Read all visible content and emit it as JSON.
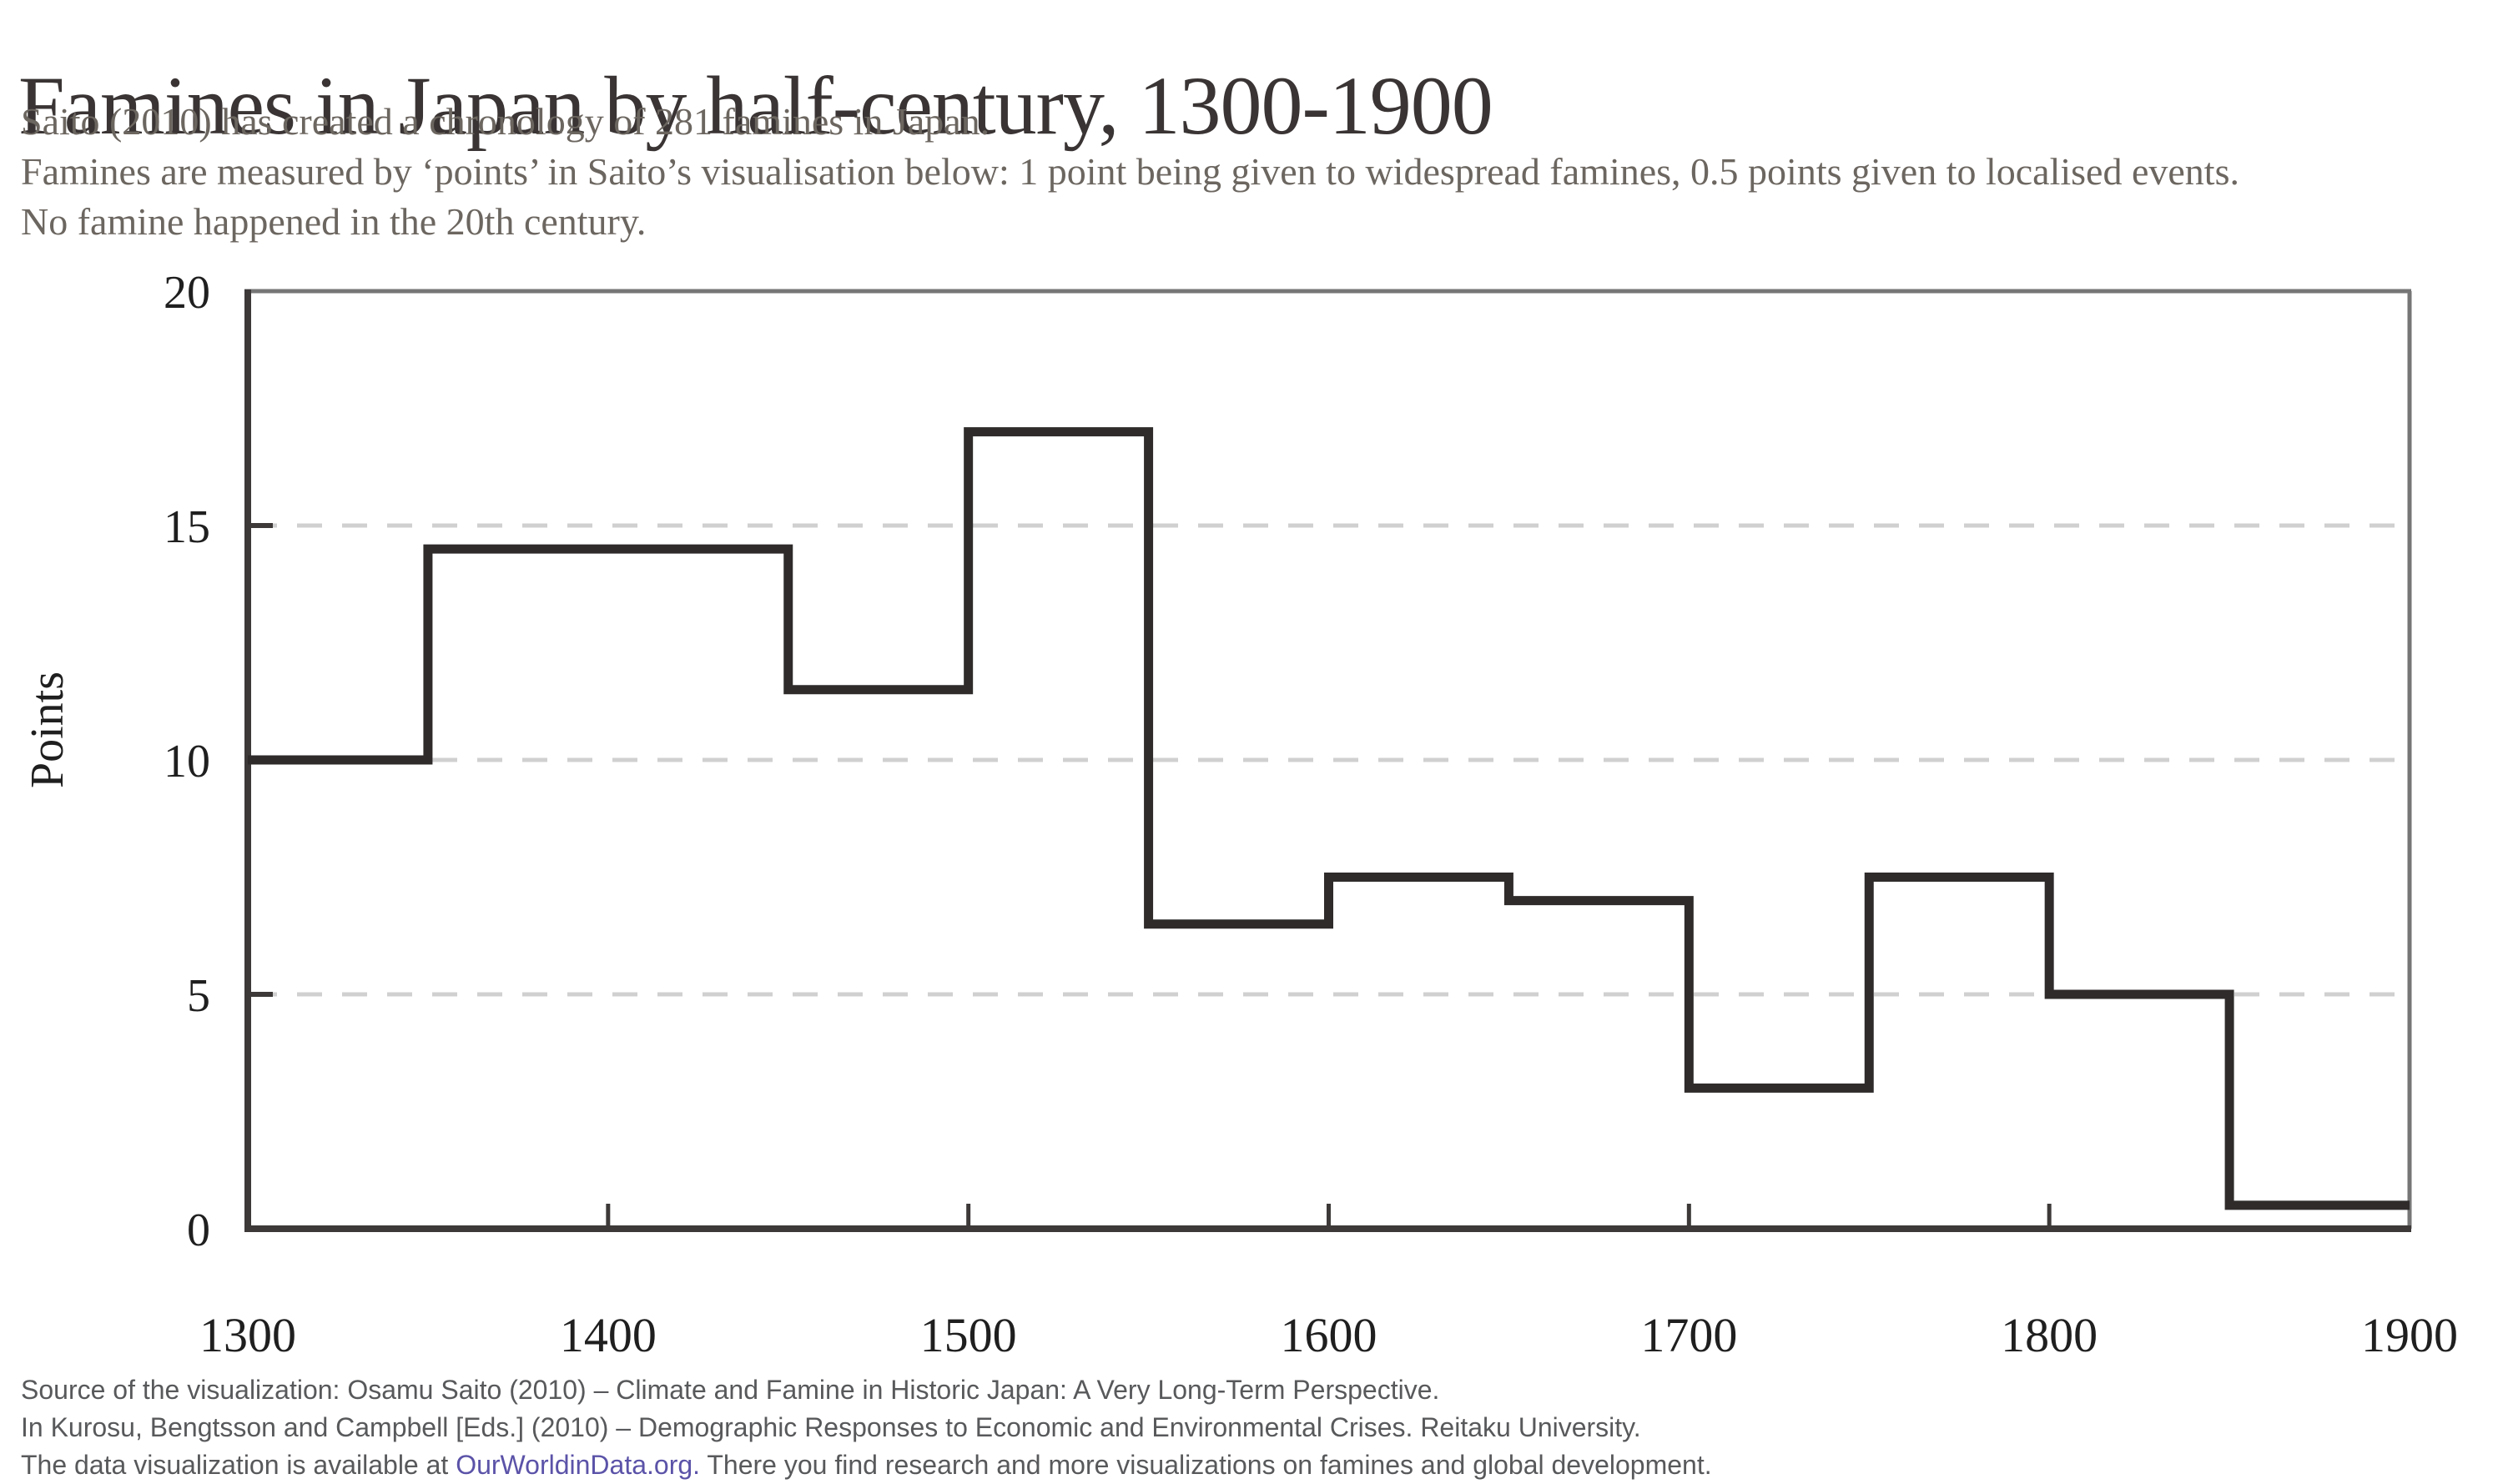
{
  "header": {
    "title": "Famines in Japan by half-century, 1300-1900",
    "subtitle_lines": [
      "Saito (2010) has created a chronology of 281 famines in Japan.",
      "Famines are measured by ‘points’ in Saito’s visualisation below: 1 point being given to widespread famines, 0.5 points given to localised events.",
      "No famine happened in the 20th century."
    ]
  },
  "footer": {
    "line1": "Source of the visualization: Osamu Saito (2010) – Climate and Famine in Historic Japan: A Very Long-Term Perspective.",
    "line2": "In Kurosu, Bengtsson and Campbell [Eds.] (2010) – Demographic Responses to Economic and Environmental Crises. Reitaku University.",
    "line3_prefix": "The data visualization is available at ",
    "line3_link": "OurWorldinData.org.",
    "line3_suffix": " There you find research and more visualizations on famines and global development."
  },
  "chart_data": {
    "type": "step",
    "title": "Famines in Japan by half-century, 1300-1900",
    "ylabel": "Points",
    "xlabel": "",
    "xlim": [
      1300,
      1900
    ],
    "ylim": [
      0,
      20
    ],
    "boundaries": [
      1300,
      1350,
      1400,
      1450,
      1500,
      1550,
      1600,
      1650,
      1700,
      1750,
      1800,
      1850,
      1900
    ],
    "categories": [
      "1300–1350",
      "1350–1400",
      "1400–1450",
      "1450–1500",
      "1500–1550",
      "1550–1600",
      "1600–1650",
      "1650–1700",
      "1700–1750",
      "1750–1800",
      "1800–1850",
      "1850–1900"
    ],
    "values": [
      10,
      14.5,
      14.5,
      11.5,
      17,
      6.5,
      7.5,
      7,
      3,
      7.5,
      5,
      0.5
    ],
    "yticks": [
      0,
      5,
      10,
      15,
      20
    ],
    "xticks": [
      1300,
      1400,
      1500,
      1600,
      1700,
      1800,
      1900
    ],
    "inner_xticks": [
      1400,
      1500,
      1600,
      1700,
      1800
    ],
    "gridlines": [
      5,
      10,
      15
    ],
    "grid_style": "dashed",
    "legend": "none",
    "colors": {
      "line": "#2f2b2b",
      "frame_light": "#767676",
      "axis_dark": "#3d3939",
      "grid": "#d0d0d0",
      "tick_text": "#1f1f1f"
    }
  }
}
